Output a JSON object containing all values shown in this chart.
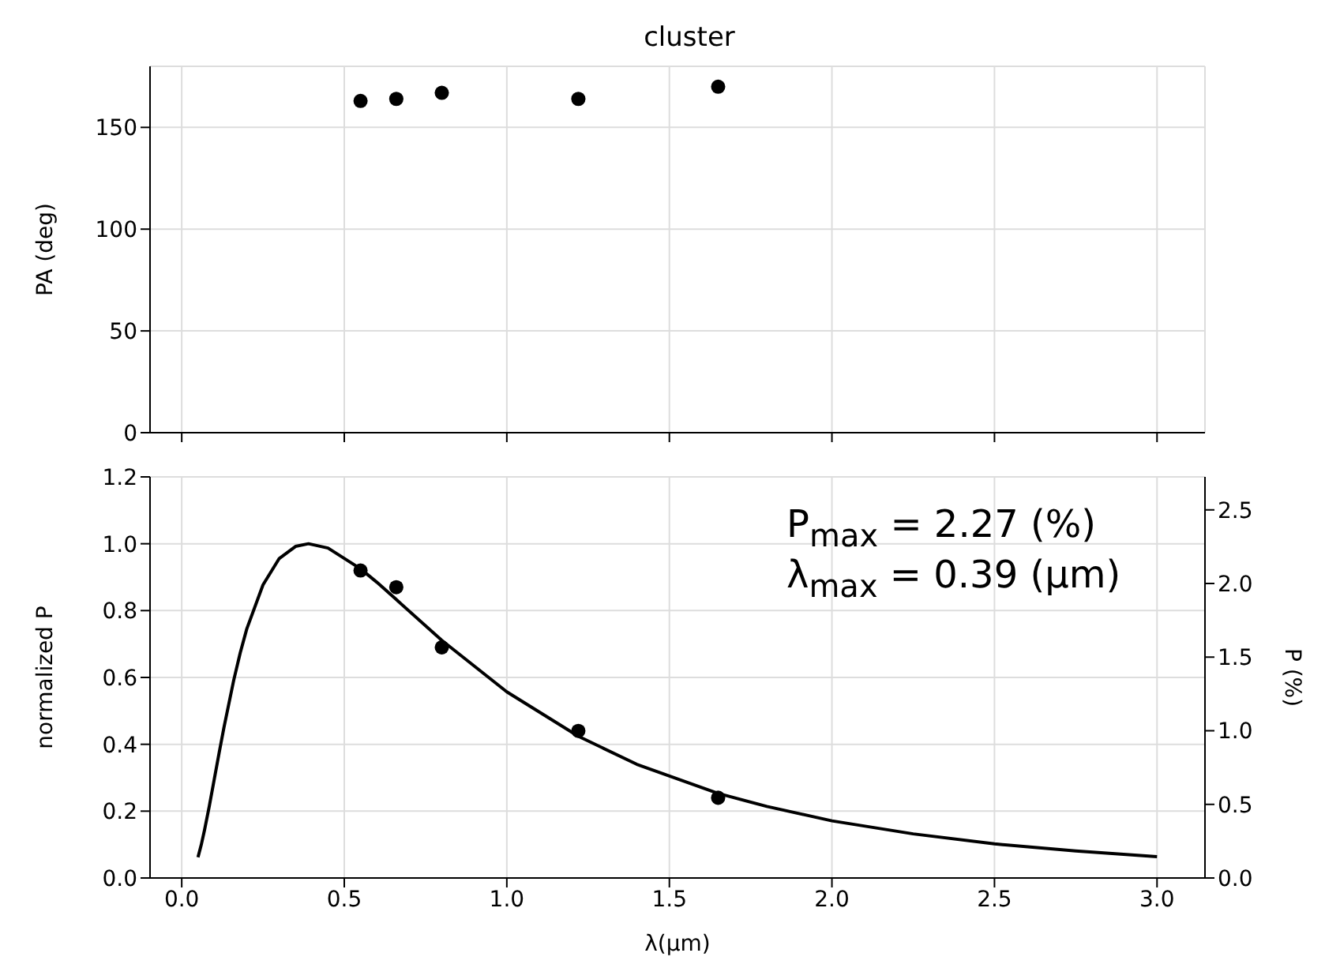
{
  "chart_data": [
    {
      "type": "scatter",
      "title": "cluster",
      "ylabel": "PA (deg)",
      "tick_labels": "y",
      "grid": true,
      "marker": "circle",
      "xlim": [
        -0.0975,
        3.1475
      ],
      "xticks": [
        0,
        0.5,
        1,
        1.5,
        2,
        2.5,
        3
      ],
      "ylim": [
        0,
        180
      ],
      "yticks": [
        0,
        50,
        100,
        150
      ],
      "x": [
        0.55,
        0.66,
        0.8,
        1.22,
        1.65
      ],
      "series": [
        {
          "color": "#000000",
          "values": [
            163,
            164,
            167,
            164,
            170
          ]
        }
      ]
    },
    {
      "type": "scatter",
      "xlabel": "λ(µm)",
      "ylabel": "normalized P",
      "y2label": "P (%)",
      "grid": true,
      "marker": "circle",
      "xlim": [
        -0.0975,
        3.1475
      ],
      "xticks": [
        {
          "value": 0,
          "label": "0.0"
        },
        0.5,
        {
          "value": 1,
          "label": "1.0"
        },
        1.5,
        {
          "value": 2,
          "label": "2.0"
        },
        2.5,
        {
          "value": 3,
          "label": "3.0"
        }
      ],
      "ylim": [
        0,
        1.2
      ],
      "yticks": [
        {
          "value": 0,
          "label": "0.0"
        },
        0.2,
        0.4,
        0.6,
        0.8,
        {
          "value": 1,
          "label": "1.0"
        },
        1.2
      ],
      "y2lim": [
        0,
        2.724
      ],
      "y2ticks": [
        {
          "value": 0,
          "label": "0.0"
        },
        0.5,
        {
          "value": 1,
          "label": "1.0"
        },
        1.5,
        {
          "value": 2,
          "label": "2.0"
        },
        2.5
      ],
      "x": [
        0.55,
        0.66,
        0.8,
        1.22,
        1.65
      ],
      "series": [
        {
          "color": "#000000",
          "values": [
            0.92,
            0.87,
            0.69,
            0.44,
            0.24
          ]
        },
        {
          "type": "line",
          "color": "#000000",
          "marker": "none",
          "x": [
            0.05,
            0.06,
            0.07,
            0.085,
            0.1,
            0.115,
            0.13,
            0.16,
            0.18,
            0.2,
            0.25,
            0.3,
            0.35,
            0.39,
            0.45,
            0.55,
            0.6,
            0.66,
            0.8,
            1.0,
            1.22,
            1.4,
            1.65,
            1.8,
            2.0,
            2.25,
            2.5,
            2.75,
            3.0
          ],
          "values": [
            0.062,
            0.099,
            0.143,
            0.216,
            0.295,
            0.374,
            0.451,
            0.592,
            0.674,
            0.745,
            0.877,
            0.956,
            0.992,
            1.0,
            0.987,
            0.925,
            0.885,
            0.833,
            0.711,
            0.557,
            0.424,
            0.34,
            0.253,
            0.214,
            0.171,
            0.132,
            0.102,
            0.081,
            0.064
          ]
        }
      ],
      "annotations": [
        "P$_{max}$ = 2.27 (%)",
        "λ$_{max}$ = 0.39 (µm)"
      ]
    }
  ]
}
